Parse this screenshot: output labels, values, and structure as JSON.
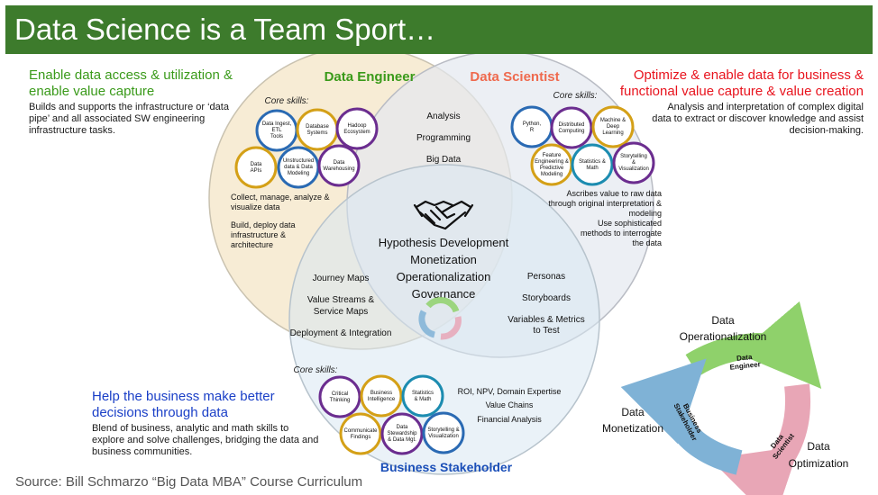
{
  "title": "Data Science is a Team Sport…",
  "source": "Source: Bill Schmarzo “Big Data MBA” Course Curriculum",
  "colors": {
    "title_bar": "#3d7b2c",
    "engineer_fill": "#f6ead0",
    "scientist_fill": "#e4e8f0",
    "stakeholder_fill": "#d8e8f3",
    "green_text": "#3a9a1a",
    "red_text": "#e8141e",
    "blue_text": "#1a3fc7",
    "salmon_text": "#ef6a4e",
    "blue_title": "#1b4fb8",
    "ring_blue": "#2a6ab3",
    "ring_purple": "#6b2d8f",
    "ring_gold": "#d4a017",
    "ring_teal": "#1c8cb0",
    "cycle_green": "#8fd16b",
    "cycle_pink": "#e8a6b6",
    "cycle_blue": "#7fb2d6"
  },
  "left_top": {
    "heading_lines": [
      "Enable data access & utilization &",
      "enable value capture"
    ],
    "body_lines": [
      "Builds and supports the infrastructure or ‘data",
      "pipe’ and all associated SW engineering",
      "infrastructure tasks."
    ]
  },
  "right_top": {
    "heading_lines": [
      "Optimize & enable data for business &",
      "functional value capture & value creation"
    ],
    "body_lines": [
      "Analysis and interpretation of complex digital",
      "data to extract or discover knowledge and assist",
      "decision-making."
    ]
  },
  "left_bottom": {
    "heading_lines": [
      "Help the business make better",
      "decisions through data"
    ],
    "body_lines": [
      "Blend of business, analytic and math skills to",
      "explore and solve challenges, bridging the data and",
      "business communities."
    ]
  },
  "engineer": {
    "title": "Data Engineer",
    "core_label": "Core skills:",
    "skills": [
      {
        "lines": [
          "Data Ingest,",
          "ETL",
          "Tools"
        ]
      },
      {
        "lines": [
          "Database",
          "Systems"
        ]
      },
      {
        "lines": [
          "Hadoop",
          "Ecosystem"
        ]
      },
      {
        "lines": [
          "Data",
          "APIs"
        ]
      },
      {
        "lines": [
          "Unstructured",
          "data & Data",
          "Modeling"
        ]
      },
      {
        "lines": [
          "Data",
          "Warehousing"
        ]
      }
    ],
    "tasks": [
      {
        "lines": [
          "Collect, manage, analyze &",
          "visualize data"
        ]
      },
      {
        "lines": [
          "Build, deploy data",
          "infrastructure &",
          "architecture"
        ]
      }
    ]
  },
  "scientist": {
    "title": "Data Scientist",
    "core_label": "Core skills:",
    "skills": [
      {
        "lines": [
          "Python,",
          "R"
        ]
      },
      {
        "lines": [
          "Distributed",
          "Computing"
        ]
      },
      {
        "lines": [
          "Machine &",
          "Deep",
          "Learning"
        ]
      },
      {
        "lines": [
          "Feature",
          "Engineering &",
          "Predictive",
          "Modeling"
        ]
      },
      {
        "lines": [
          "Statistics &",
          "Math"
        ]
      },
      {
        "lines": [
          "Storytelling",
          "&",
          "Visualization"
        ]
      }
    ],
    "tasks": [
      {
        "lines": [
          "Ascribes value to raw data",
          "through original interpretation &",
          "modeling"
        ]
      },
      {
        "lines": [
          "Use sophisticated",
          "methods to interrogate",
          "the data"
        ]
      }
    ]
  },
  "stakeholder": {
    "title": "Business Stakeholder",
    "core_label": "Core skills:",
    "skills": [
      {
        "lines": [
          "Critical",
          "Thinking"
        ]
      },
      {
        "lines": [
          "Business",
          "Intelligence"
        ]
      },
      {
        "lines": [
          "Statistics",
          "& Math"
        ]
      },
      {
        "lines": [
          "Communicate",
          "Findings"
        ]
      },
      {
        "lines": [
          "Data",
          "Stewardship",
          "& Data Mgt."
        ]
      },
      {
        "lines": [
          "Storytelling &",
          "Visualization"
        ]
      }
    ],
    "tasks": [
      "ROI, NPV, Domain Expertise",
      "Value Chains",
      "Financial Analysis"
    ]
  },
  "overlap_engineer_scientist": [
    "Analysis",
    "Programming",
    "Big Data"
  ],
  "overlap_engineer_stakeholder": [
    {
      "lines": [
        "Journey Maps"
      ]
    },
    {
      "lines": [
        "Value Streams &",
        "Service Maps"
      ]
    },
    {
      "lines": [
        "Deployment & Integration"
      ]
    }
  ],
  "overlap_scientist_stakeholder": [
    {
      "lines": [
        "Personas"
      ]
    },
    {
      "lines": [
        "Storyboards"
      ]
    },
    {
      "lines": [
        "Variables & Metrics",
        "to Test"
      ]
    }
  ],
  "center": {
    "icon": "handshake-icon",
    "items": [
      "Hypothesis Development",
      "Monetization",
      "Operationalization",
      "Governance"
    ]
  },
  "cycle": {
    "top_label_lines": [
      "Data",
      "Operationalization"
    ],
    "right_label_lines": [
      "Data",
      "Optimization"
    ],
    "left_label_lines": [
      "Data",
      "Monetization"
    ],
    "arrow_engineer_lines": [
      "Data",
      "Engineer"
    ],
    "arrow_scientist_lines": [
      "Data",
      "Scientist"
    ],
    "arrow_stakeholder_lines": [
      "Business",
      "Stakeholder"
    ]
  }
}
